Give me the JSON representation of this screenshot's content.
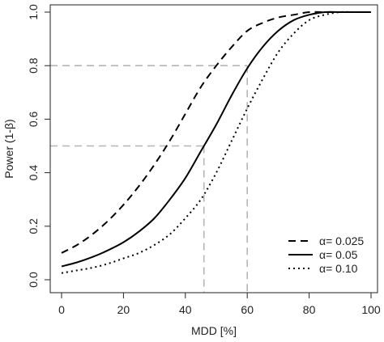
{
  "chart_data": {
    "type": "line",
    "xlabel": "MDD [%]",
    "ylabel": "Power (1-β)",
    "xlim": [
      0,
      100
    ],
    "ylim": [
      0,
      1
    ],
    "x_ticks": [
      "0",
      "20",
      "40",
      "60",
      "80",
      "100"
    ],
    "y_ticks": [
      "0.0",
      "0.2",
      "0.4",
      "0.6",
      "0.8",
      "1.0"
    ],
    "grid": false,
    "legend_position": "bottom-right",
    "series": [
      {
        "name": "α= 0.025",
        "style": "dashed",
        "x": [
          0,
          5,
          10,
          15,
          20,
          25,
          30,
          35,
          40,
          45,
          50,
          55,
          60,
          65,
          70,
          75,
          80,
          85,
          90,
          95,
          100
        ],
        "y": [
          0.1,
          0.13,
          0.17,
          0.22,
          0.28,
          0.35,
          0.43,
          0.52,
          0.62,
          0.72,
          0.8,
          0.87,
          0.93,
          0.96,
          0.98,
          0.99,
          1.0,
          1.0,
          1.0,
          1.0,
          1.0
        ]
      },
      {
        "name": "α= 0.05",
        "style": "solid",
        "x": [
          0,
          5,
          10,
          15,
          20,
          25,
          30,
          35,
          40,
          45,
          50,
          55,
          60,
          65,
          70,
          75,
          80,
          85,
          90,
          95,
          100
        ],
        "y": [
          0.05,
          0.065,
          0.085,
          0.11,
          0.14,
          0.18,
          0.23,
          0.3,
          0.38,
          0.48,
          0.58,
          0.69,
          0.79,
          0.87,
          0.93,
          0.97,
          0.99,
          1.0,
          1.0,
          1.0,
          1.0
        ]
      },
      {
        "name": "α= 0.10",
        "style": "dotted",
        "x": [
          0,
          5,
          10,
          15,
          20,
          25,
          30,
          35,
          40,
          45,
          50,
          55,
          60,
          65,
          70,
          75,
          80,
          85,
          90,
          95,
          100
        ],
        "y": [
          0.025,
          0.035,
          0.045,
          0.06,
          0.08,
          0.1,
          0.13,
          0.17,
          0.23,
          0.3,
          0.4,
          0.52,
          0.64,
          0.75,
          0.85,
          0.92,
          0.97,
          0.99,
          1.0,
          1.0,
          1.0
        ]
      }
    ],
    "reference_lines": [
      {
        "x": 60,
        "y": 0.8
      },
      {
        "x": 46,
        "y": 0.5
      }
    ]
  },
  "colors": {
    "line": "#000000",
    "reference": "#b5b5b5",
    "axis": "#222222"
  }
}
